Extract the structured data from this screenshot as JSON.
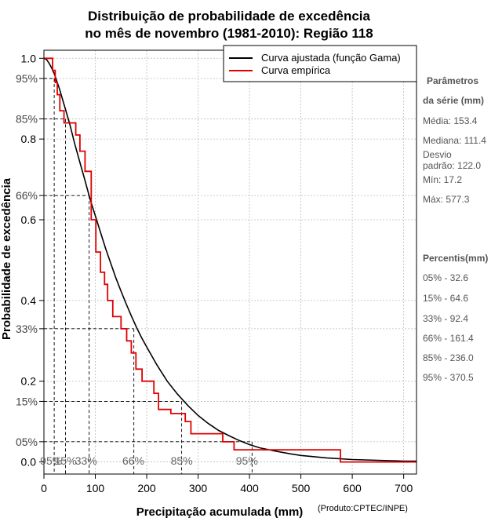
{
  "chart_data": {
    "type": "line",
    "title_line1": "Distribuição de probabilidade de excedência",
    "title_line2": "no mês de novembro (1981-2010): Região 118",
    "xlabel": "Precipitação acumulada (mm)",
    "ylabel": "Probabilidade de excedência",
    "credit": "(Produto:CPTEC/INPE)",
    "xlim": [
      0,
      725
    ],
    "ylim": [
      -0.03,
      1.02
    ],
    "x_ticks": [
      0,
      100,
      200,
      300,
      400,
      500,
      600,
      700
    ],
    "x_tick_labels": [
      "0",
      "100",
      "200",
      "300",
      "400",
      "500",
      "600",
      "700"
    ],
    "y_ticks": [
      0.0,
      0.2,
      0.4,
      0.6,
      0.8,
      1.0
    ],
    "y_tick_labels": [
      "0.0",
      "0.2",
      "0.4",
      "0.6",
      "0.8",
      "1.0"
    ],
    "y_pct_ticks": [
      0.05,
      0.15,
      0.33,
      0.66,
      0.85,
      0.95
    ],
    "y_pct_labels": [
      "05%",
      "15%",
      "33%",
      "66%",
      "85%",
      "95%"
    ],
    "legend": [
      {
        "name": "Curva ajustada (função Gama)",
        "color": "#000000"
      },
      {
        "name": "Curva empírica",
        "color": "#e00000"
      }
    ],
    "series": [
      {
        "name": "Curva ajustada (função Gama)",
        "color": "#000000",
        "x": [
          0,
          5,
          10,
          15,
          20,
          30,
          40,
          50,
          60,
          70,
          80,
          90,
          100,
          110,
          120,
          130,
          140,
          150,
          160,
          170,
          180,
          190,
          200,
          220,
          240,
          260,
          280,
          300,
          320,
          340,
          360,
          380,
          400,
          420,
          450,
          480,
          500,
          550,
          600,
          650,
          700,
          725
        ],
        "y": [
          1.0,
          0.997,
          0.988,
          0.976,
          0.962,
          0.925,
          0.882,
          0.838,
          0.788,
          0.742,
          0.697,
          0.65,
          0.61,
          0.569,
          0.529,
          0.492,
          0.456,
          0.423,
          0.392,
          0.362,
          0.334,
          0.308,
          0.285,
          0.24,
          0.2,
          0.168,
          0.14,
          0.115,
          0.095,
          0.078,
          0.065,
          0.053,
          0.043,
          0.035,
          0.027,
          0.02,
          0.016,
          0.01,
          0.006,
          0.004,
          0.002,
          0.002
        ]
      },
      {
        "name": "Curva empírica",
        "color": "#e00000",
        "x": [
          0,
          17,
          22,
          26,
          31,
          33,
          39,
          55,
          62,
          70,
          80,
          92,
          101,
          110,
          118,
          124,
          134,
          150,
          161,
          170,
          179,
          191,
          214,
          223,
          236,
          247,
          275,
          286,
          302,
          313,
          348,
          370,
          410,
          460,
          530,
          577,
          590,
          725
        ],
        "y": [
          1.0,
          0.97,
          0.94,
          0.91,
          0.87,
          0.87,
          0.84,
          0.84,
          0.81,
          0.77,
          0.72,
          0.6,
          0.52,
          0.47,
          0.44,
          0.4,
          0.36,
          0.33,
          0.3,
          0.27,
          0.23,
          0.2,
          0.17,
          0.13,
          0.13,
          0.12,
          0.1,
          0.07,
          0.07,
          0.07,
          0.05,
          0.03,
          0.03,
          0.03,
          0.03,
          0.0,
          0.0,
          0.0
        ]
      }
    ],
    "percentile_lines": [
      {
        "label": "95%",
        "prob": 0.95,
        "x": 20
      },
      {
        "label": "85%",
        "prob": 0.85,
        "x": 42
      },
      {
        "label": "66%",
        "prob": 0.66,
        "x": 88
      },
      {
        "label": "33%",
        "prob": 0.33,
        "x": 175
      },
      {
        "label": "15%",
        "prob": 0.15,
        "x": 268
      },
      {
        "label": "05%",
        "prob": 0.05,
        "x": 405
      }
    ],
    "bottom_pct_labels": [
      {
        "text": "95%",
        "x": 14
      },
      {
        "text": "15%",
        "x": 42
      },
      {
        "text": "33%",
        "x": 82
      },
      {
        "text": "66%",
        "x": 174
      },
      {
        "text": "85%",
        "x": 268
      },
      {
        "text": "95%",
        "x": 395
      }
    ]
  },
  "side_panel": {
    "params_head_line1": "Parâmetros",
    "params_head_line2": "da série (mm)",
    "media": "Média: 153.4",
    "mediana": "Mediana: 111.4",
    "desvio_line1": "Desvio",
    "desvio_line2": "padrão: 122.0",
    "min": "Mín: 17.2",
    "max": "Máx: 577.3",
    "percentis_head": "Percentis(mm)",
    "percentis": [
      "05% - 32.6",
      "15% - 64.6",
      "33% - 92.4",
      "66% - 161.4",
      "85% - 236.0",
      "95% - 370.5"
    ]
  }
}
